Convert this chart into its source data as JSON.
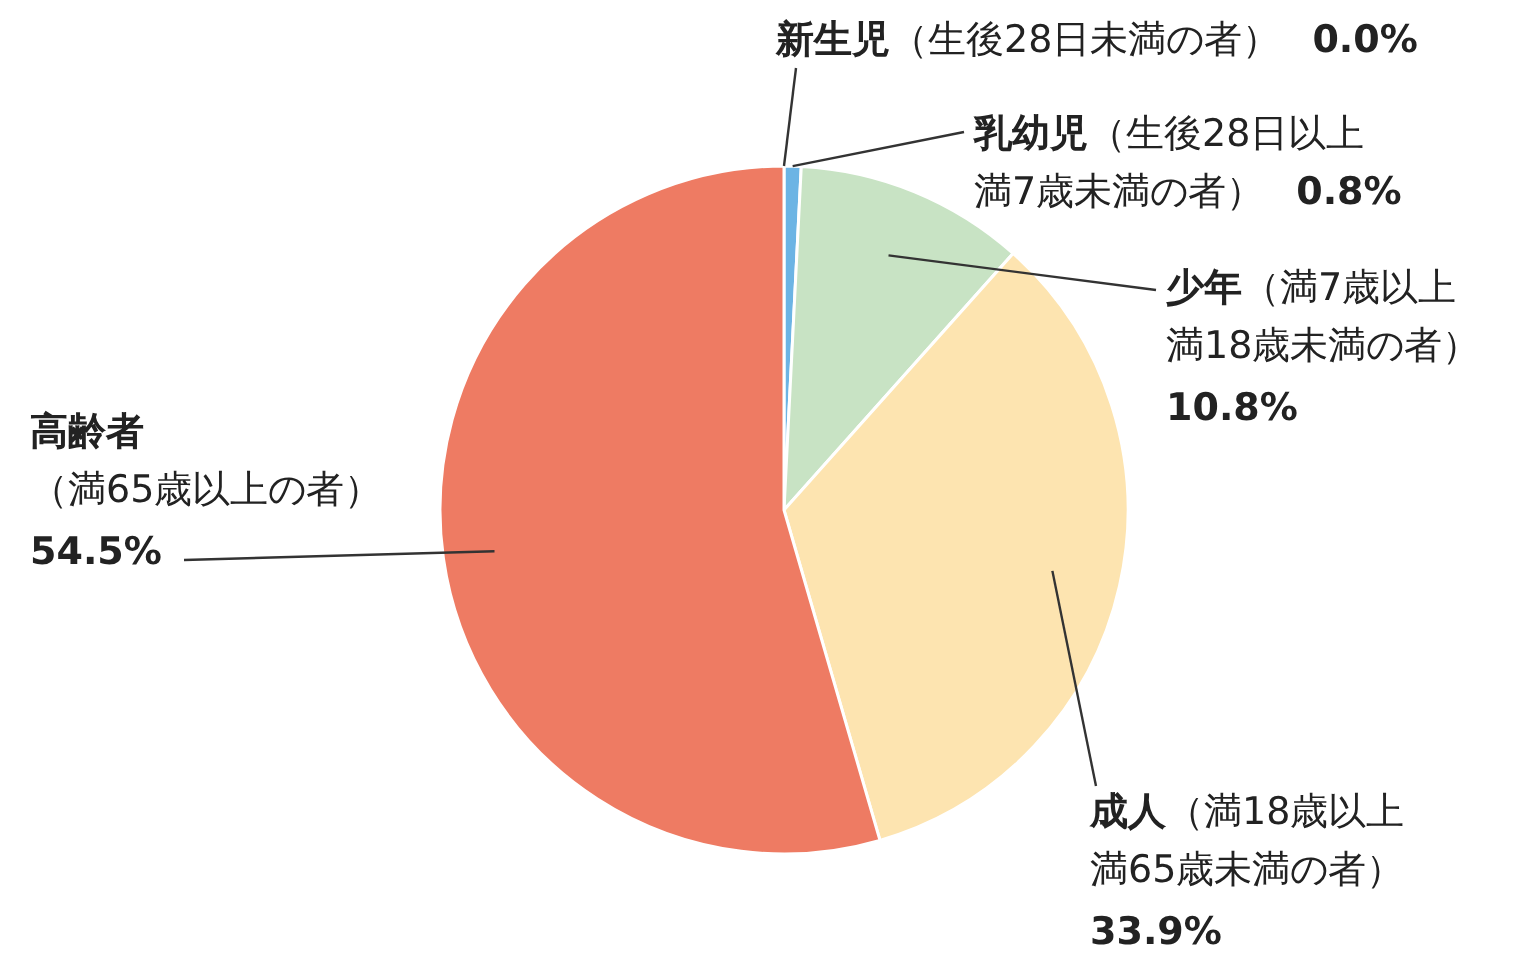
{
  "chart_data": {
    "type": "pie",
    "categories": [
      "**新生児**（生後28日未満の者）",
      "**乳幼児**（生後28日以上満7歳未満の者）",
      "**少年**（満7歳以上満18歳未満の者）",
      "**成人**（満18歳以上満65歳未満の者）",
      "**高齢者**（満65歳以上の者）"
    ],
    "values": [
      0.0,
      0.8,
      10.8,
      33.9,
      54.5
    ],
    "value_labels": [
      "0.0%",
      "0.8%",
      "10.8%",
      "33.9%",
      "54.5%"
    ],
    "colors": [
      "#4a90d0",
      "#6cb4e4",
      "#c8e3c4",
      "#fde4b0",
      "#ee7b63"
    ]
  }
}
